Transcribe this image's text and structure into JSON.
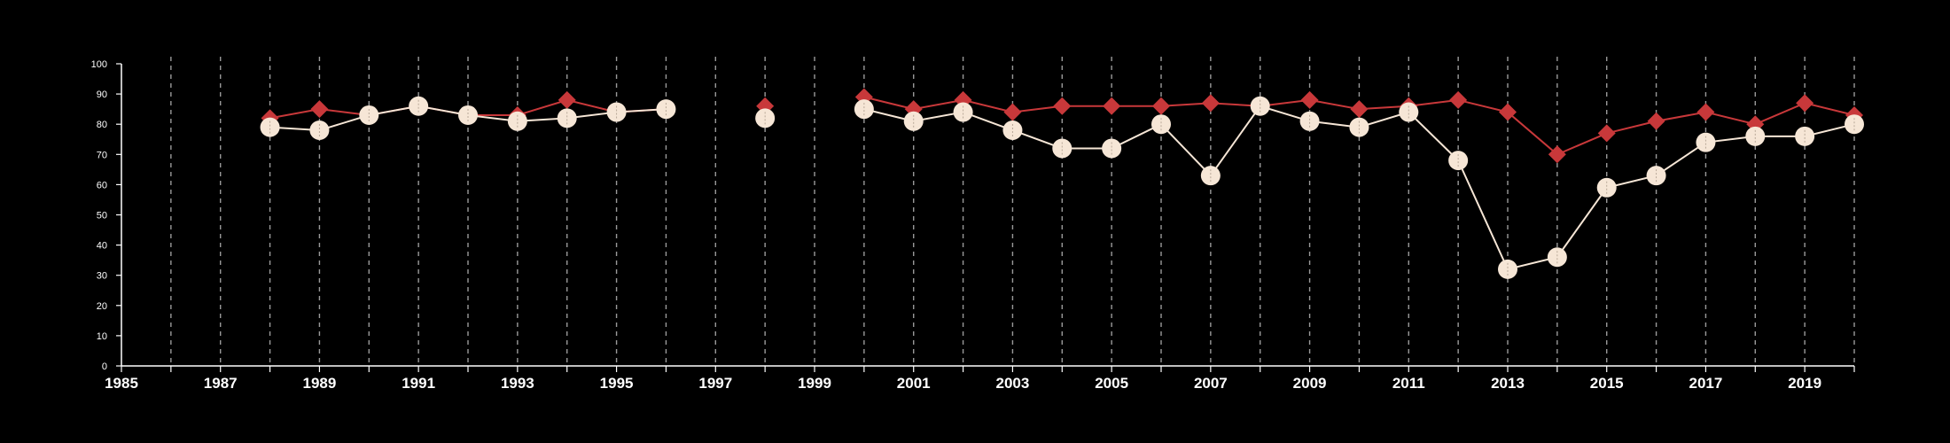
{
  "chart_data": {
    "type": "line",
    "title": "",
    "xlabel": "",
    "ylabel": "",
    "xlim": [
      1985,
      2020
    ],
    "ylim": [
      0,
      100
    ],
    "x_tick_labels": [
      "1985",
      "1987",
      "1989",
      "1991",
      "1993",
      "1995",
      "1997",
      "1999",
      "2001",
      "2003",
      "2005",
      "2007",
      "2009",
      "2011",
      "2013",
      "2015",
      "2017",
      "2019"
    ],
    "y_tick_labels": [
      "0",
      "10",
      "20",
      "30",
      "40",
      "50",
      "60",
      "70",
      "80",
      "90",
      "100"
    ],
    "vertical_dashed_grid": true,
    "colors": {
      "background": "#000000",
      "axis": "#ffffff",
      "grid": "#9a9a9a",
      "series_a": "#c8383a",
      "series_b": "#f6e6d6"
    },
    "series": [
      {
        "marker": "diamond",
        "color": "#c8383a",
        "segments": [
          [
            [
              1988,
              82
            ],
            [
              1989,
              85
            ],
            [
              1990,
              83
            ],
            [
              1991,
              86
            ],
            [
              1992,
              83
            ],
            [
              1993,
              83
            ],
            [
              1994,
              88
            ],
            [
              1995,
              84
            ],
            [
              1996,
              85
            ]
          ],
          [
            [
              1998,
              86
            ]
          ],
          [
            [
              2000,
              89
            ],
            [
              2001,
              85
            ],
            [
              2002,
              88
            ],
            [
              2003,
              84
            ],
            [
              2004,
              86
            ],
            [
              2005,
              86
            ],
            [
              2006,
              86
            ],
            [
              2007,
              87
            ],
            [
              2008,
              86
            ],
            [
              2009,
              88
            ],
            [
              2010,
              85
            ],
            [
              2011,
              86
            ],
            [
              2012,
              88
            ],
            [
              2013,
              84
            ],
            [
              2014,
              70
            ],
            [
              2015,
              77
            ],
            [
              2016,
              81
            ],
            [
              2017,
              84
            ],
            [
              2018,
              80
            ],
            [
              2019,
              87
            ],
            [
              2020,
              83
            ]
          ]
        ]
      },
      {
        "marker": "circle",
        "color": "#f6e6d6",
        "segments": [
          [
            [
              1988,
              79
            ],
            [
              1989,
              78
            ],
            [
              1990,
              83
            ],
            [
              1991,
              86
            ],
            [
              1992,
              83
            ],
            [
              1993,
              81
            ],
            [
              1994,
              82
            ],
            [
              1995,
              84
            ],
            [
              1996,
              85
            ]
          ],
          [
            [
              1998,
              82
            ]
          ],
          [
            [
              2000,
              85
            ],
            [
              2001,
              81
            ],
            [
              2002,
              84
            ],
            [
              2003,
              78
            ],
            [
              2004,
              72
            ],
            [
              2005,
              72
            ],
            [
              2006,
              80
            ],
            [
              2007,
              63
            ],
            [
              2008,
              86
            ],
            [
              2009,
              81
            ],
            [
              2010,
              79
            ],
            [
              2011,
              84
            ],
            [
              2012,
              68
            ],
            [
              2013,
              32
            ],
            [
              2014,
              36
            ],
            [
              2015,
              59
            ],
            [
              2016,
              63
            ],
            [
              2017,
              74
            ],
            [
              2018,
              76
            ],
            [
              2019,
              76
            ],
            [
              2020,
              80
            ]
          ]
        ]
      }
    ]
  }
}
